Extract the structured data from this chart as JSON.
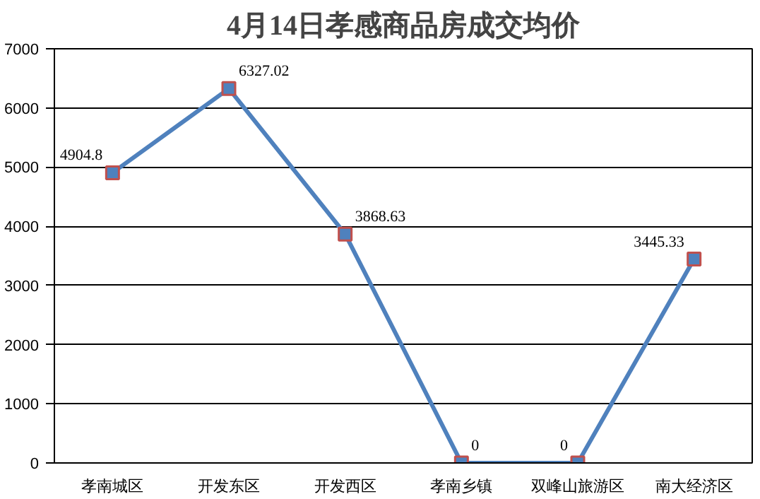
{
  "chart_data": {
    "type": "line",
    "title": "4月14日孝感商品房成交均价",
    "categories": [
      "孝南城区",
      "开发东区",
      "开发西区",
      "孝南乡镇",
      "双峰山旅游区",
      "南大经济区"
    ],
    "series": [
      {
        "color": "#4f81bd",
        "values": [
          4904.8,
          6327.02,
          3868.63,
          0,
          0,
          3445.33
        ]
      }
    ],
    "ylim": [
      0,
      7000
    ],
    "yticks": [
      0,
      1000,
      2000,
      3000,
      4000,
      5000,
      6000,
      7000
    ],
    "grid": "y",
    "marker": "square",
    "data_labels": true
  }
}
